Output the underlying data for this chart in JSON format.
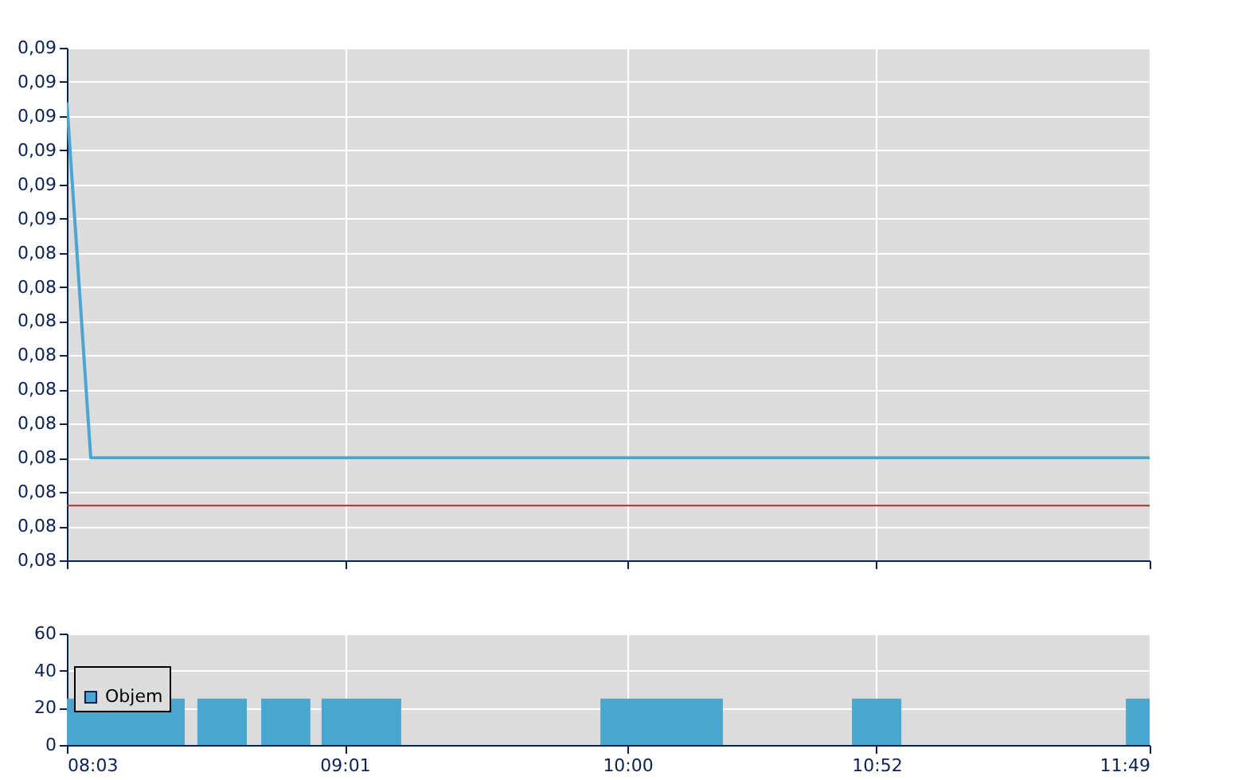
{
  "chart_data": [
    {
      "type": "line",
      "x": [
        8.05,
        8.133,
        11.8167
      ],
      "series": [
        {
          "color": "#4aa5cf",
          "values": [
            0.0867,
            0.0815,
            0.0815
          ]
        }
      ],
      "xlim": [
        8.05,
        11.8167
      ],
      "xticks": [
        {
          "value": 8.05,
          "label": null
        },
        {
          "value": 9.0167,
          "label": null
        },
        {
          "value": 10.0,
          "label": null
        },
        {
          "value": 10.8667,
          "label": null
        },
        {
          "value": 11.8167,
          "label": null
        }
      ],
      "ylim": [
        0.08,
        0.0875
      ],
      "yticks": [
        {
          "value": 0.08,
          "label": "0,08"
        },
        {
          "value": 0.0805,
          "label": "0,08"
        },
        {
          "value": 0.081,
          "label": "0,08"
        },
        {
          "value": 0.0815,
          "label": "0,08"
        },
        {
          "value": 0.082,
          "label": "0,08"
        },
        {
          "value": 0.0825,
          "label": "0,08"
        },
        {
          "value": 0.083,
          "label": "0,08"
        },
        {
          "value": 0.0835,
          "label": "0,08"
        },
        {
          "value": 0.084,
          "label": "0,08"
        },
        {
          "value": 0.0845,
          "label": "0,08"
        },
        {
          "value": 0.085,
          "label": "0,09"
        },
        {
          "value": 0.0855,
          "label": "0,09"
        },
        {
          "value": 0.086,
          "label": "0,09"
        },
        {
          "value": 0.0865,
          "label": "0,09"
        },
        {
          "value": 0.087,
          "label": "0,09"
        },
        {
          "value": 0.0875,
          "label": "0,09"
        }
      ],
      "ref_lines": [
        {
          "axis": "y",
          "value": 0.0808,
          "color": "#b03030"
        }
      ],
      "grid": true,
      "tick_labels": "y",
      "marker": "none",
      "line_style": "solid"
    },
    {
      "type": "histogram",
      "bins": [
        8.05,
        8.46,
        8.504,
        8.676,
        8.726,
        8.897,
        8.936,
        9.213,
        9.906,
        10.332,
        10.781,
        10.953,
        11.734,
        11.8167
      ],
      "series": [
        {
          "name": "Objem",
          "color": "#48a6cf",
          "values": [
            25,
            null,
            25,
            null,
            25,
            null,
            25,
            null,
            25,
            null,
            25,
            null,
            25
          ]
        }
      ],
      "xlim": [
        8.05,
        11.8167
      ],
      "xticks": [
        {
          "value": 8.05,
          "label": "08:03"
        },
        {
          "value": 9.0167,
          "label": "09:01"
        },
        {
          "value": 10.0,
          "label": "10:00"
        },
        {
          "value": 10.8667,
          "label": "10:52"
        },
        {
          "value": 11.8167,
          "label": "11:49"
        }
      ],
      "ylim": [
        0,
        60
      ],
      "yticks": [
        0,
        20,
        40,
        60
      ],
      "grid": true,
      "legend": "left"
    }
  ]
}
